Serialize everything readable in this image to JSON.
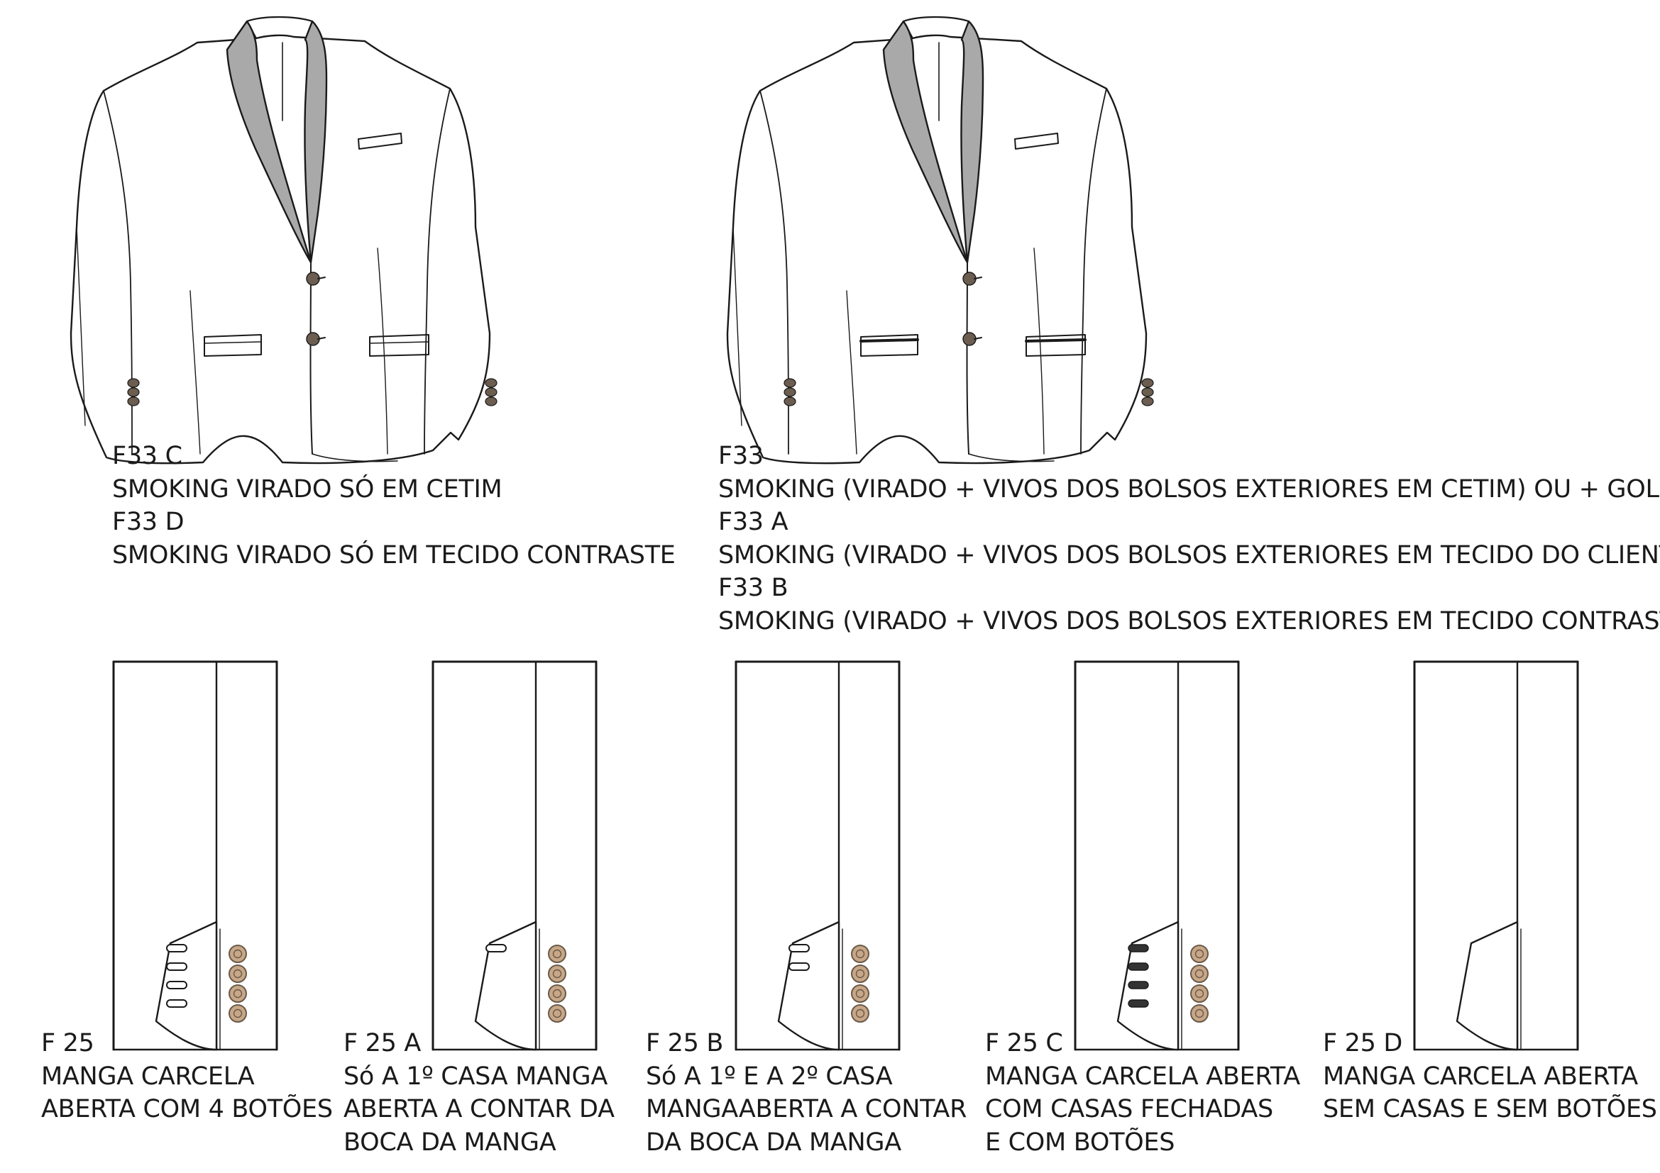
{
  "colors": {
    "line": "#1a1a1a",
    "lapel": "#a9a9a9",
    "button_fill": "#c7a787",
    "button_stroke": "#6a5a49",
    "dark_button": "#6b5d50",
    "paper": "#ffffff"
  },
  "jackets": [
    {
      "id": "jacket-f33c",
      "code_lines": [
        "F33 C",
        "SMOKING VIRADO SÓ EM CETIM",
        "F33 D",
        "SMOKING VIRADO SÓ EM TECIDO CONTRASTE"
      ]
    },
    {
      "id": "jacket-f33",
      "code_lines": [
        "F33",
        "SMOKING (VIRADO + VIVOS DOS BOLSOS EXTERIORES EM CETIM) OU + GOLA",
        "F33 A",
        "SMOKING (VIRADO + VIVOS DOS BOLSOS EXTERIORES EM TECIDO DO CLIENTE)",
        "F33 B",
        "SMOKING (VIRADO + VIVOS DOS BOLSOS EXTERIORES EM TECIDO CONTRASTE)"
      ]
    }
  ],
  "sleeves": [
    {
      "id": "sleeve-f25",
      "lines": [
        "F 25",
        "MANGA CARCELA",
        "ABERTA COM 4 BOTÕES"
      ],
      "buttons": 4,
      "buttonholes": 4,
      "holes_closed": false
    },
    {
      "id": "sleeve-f25a",
      "lines": [
        "F 25 A",
        "Só A 1º CASA MANGA",
        "ABERTA A CONTAR DA",
        "BOCA DA MANGA"
      ],
      "buttons": 4,
      "buttonholes": 1,
      "holes_closed": false
    },
    {
      "id": "sleeve-f25b",
      "lines": [
        "F 25 B",
        "Só A 1º E A 2º CASA",
        "MANGAABERTA A CONTAR",
        "DA BOCA DA MANGA"
      ],
      "buttons": 4,
      "buttonholes": 2,
      "holes_closed": false
    },
    {
      "id": "sleeve-f25c",
      "lines": [
        "F 25 C",
        "MANGA CARCELA ABERTA",
        "COM CASAS FECHADAS",
        "E COM BOTÕES"
      ],
      "buttons": 4,
      "buttonholes": 4,
      "holes_closed": true
    },
    {
      "id": "sleeve-f25d",
      "lines": [
        "F 25 D",
        "MANGA CARCELA ABERTA",
        "SEM CASAS E SEM BOTÕES"
      ],
      "buttons": 0,
      "buttonholes": 0,
      "holes_closed": false
    }
  ]
}
